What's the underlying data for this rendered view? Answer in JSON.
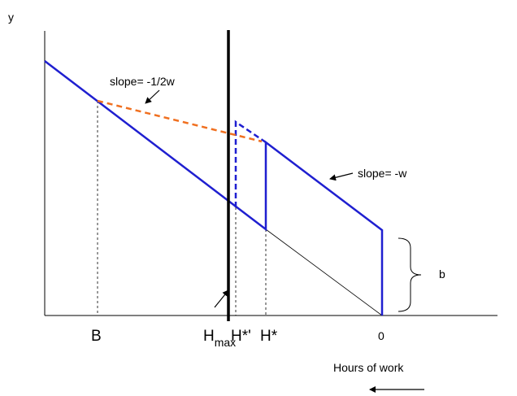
{
  "labels": {
    "y_axis": "y",
    "slope_dashed": "slope= -1/2w",
    "slope_solid": "slope= -w",
    "b": "b",
    "B": "B",
    "h_max": "H",
    "h_max_sub": "max",
    "h_star_prime": "H*'",
    "h_star": "H*",
    "zero": "0",
    "x_axis": "Hours of work"
  }
}
